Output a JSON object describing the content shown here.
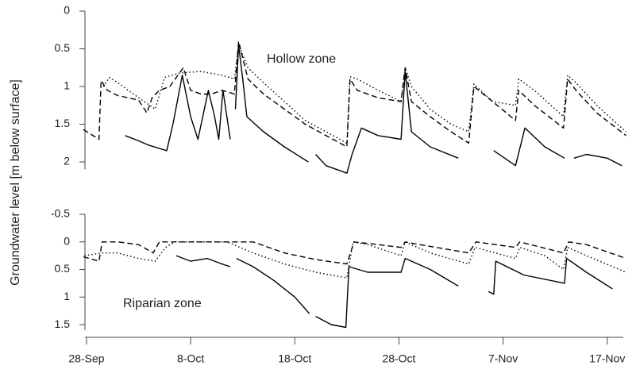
{
  "ylabel": "Groundwater level [m below surface]",
  "chart_data": [
    {
      "type": "line",
      "annotation": "Hollow zone",
      "xlim": [
        -0.5,
        52
      ],
      "ylim": [
        2.1,
        0
      ],
      "yticks": [
        0,
        0.5,
        1,
        1.5,
        2
      ],
      "series": [
        {
          "color": "#000000",
          "dash": "dashed",
          "x": [
            -0.3,
            1.2,
            1.4,
            2,
            3,
            4,
            5,
            5.8,
            6.3,
            7,
            8,
            9.3,
            10,
            11,
            12,
            13,
            14.2,
            14.6,
            15.5,
            17,
            19,
            21,
            23,
            25,
            25.3,
            26,
            28,
            30.2,
            30.6,
            31.2,
            33,
            35,
            36.7,
            37.2,
            39,
            41.2,
            41.5,
            43,
            45.8,
            46.2,
            47,
            49,
            51.8
          ],
          "values": [
            1.57,
            1.7,
            0.92,
            1.05,
            1.12,
            1.15,
            1.18,
            1.35,
            1.15,
            1.05,
            1.0,
            0.75,
            1.05,
            1.1,
            1.1,
            1.05,
            1.1,
            0.4,
            0.9,
            1.1,
            1.3,
            1.5,
            1.65,
            1.8,
            0.9,
            1.05,
            1.15,
            1.2,
            0.75,
            1.2,
            1.4,
            1.6,
            1.75,
            1.0,
            1.2,
            1.45,
            1.05,
            1.25,
            1.55,
            0.9,
            1.05,
            1.35,
            1.65
          ]
        },
        {
          "color": "#000000",
          "dash": "dotted",
          "x": [
            1.6,
            2.2,
            3,
            4.5,
            6.6,
            7.5,
            9,
            11,
            13,
            14.2,
            14.6,
            15.5,
            17,
            19,
            21,
            23,
            25,
            25.3,
            26,
            28,
            30.2,
            30.6,
            31.2,
            33,
            35,
            36.7,
            37.2,
            39,
            41.2,
            41.5,
            43,
            45.8,
            46.2,
            47,
            49,
            51.8
          ],
          "values": [
            1.0,
            0.88,
            0.95,
            1.1,
            1.3,
            0.88,
            0.82,
            0.8,
            0.85,
            0.9,
            0.45,
            0.75,
            0.95,
            1.2,
            1.45,
            1.6,
            1.75,
            0.87,
            0.9,
            1.05,
            1.2,
            0.75,
            1.0,
            1.3,
            1.5,
            1.6,
            0.97,
            1.2,
            1.25,
            0.9,
            1.05,
            1.4,
            0.85,
            0.95,
            1.25,
            1.6
          ]
        },
        {
          "color": "#000000",
          "dash": "solid",
          "x": [
            3.7,
            5,
            6,
            7.7,
            8.3,
            9.2,
            10,
            10.7,
            11.7,
            12.3,
            12.7,
            13.1,
            13.8,
            14.1,
            14.3,
            14.6,
            15,
            15.4,
            17,
            19,
            21.3,
            21.6,
            22,
            23,
            25,
            25.5,
            26.4,
            28,
            30.2,
            30.6,
            31.2,
            33,
            35.7,
            36,
            39.1,
            41.2,
            42.1,
            44,
            45.9,
            46.4,
            46.8,
            48,
            50,
            51.4
          ],
          "values": [
            1.65,
            1.72,
            1.78,
            1.85,
            1.5,
            0.85,
            1.4,
            1.7,
            1.05,
            1.4,
            1.7,
            1.05,
            1.7,
            null,
            1.3,
            0.45,
            0.9,
            1.4,
            1.6,
            1.8,
            2.0,
            null,
            1.9,
            2.05,
            2.15,
            1.9,
            1.55,
            1.65,
            1.7,
            0.8,
            1.6,
            1.8,
            1.95,
            null,
            1.85,
            2.05,
            1.55,
            1.8,
            1.95,
            null,
            1.95,
            1.9,
            1.95,
            2.05
          ]
        }
      ]
    },
    {
      "type": "line",
      "annotation": "Riparian zone",
      "xlim": [
        -0.5,
        52
      ],
      "ylim": [
        1.6,
        -0.5
      ],
      "yticks": [
        -0.5,
        0,
        0.5,
        1,
        1.5
      ],
      "xticks": [
        {
          "value": 0,
          "label": "28-Sep"
        },
        {
          "value": 10,
          "label": "8-Oct"
        },
        {
          "value": 20,
          "label": "18-Oct"
        },
        {
          "value": 30,
          "label": "28-Oct"
        },
        {
          "value": 40,
          "label": "7-Nov"
        },
        {
          "value": 50,
          "label": "17-Nov"
        }
      ],
      "series": [
        {
          "color": "#000000",
          "dash": "dashed",
          "x": [
            -0.3,
            1.2,
            1.5,
            3,
            5,
            6.4,
            7,
            10,
            13,
            16,
            19,
            22,
            25,
            25.7,
            28,
            30.2,
            30.6,
            32,
            36.7,
            37.4,
            41.2,
            41.6,
            45.8,
            46.3,
            48,
            51.8
          ],
          "values": [
            0.27,
            0.35,
            0.0,
            0.0,
            0.05,
            0.2,
            0.0,
            0.0,
            0.0,
            0.0,
            0.2,
            0.32,
            0.4,
            0.0,
            0.05,
            0.1,
            0.0,
            0.05,
            0.2,
            0.0,
            0.1,
            0.0,
            0.2,
            0.0,
            0.05,
            0.3
          ]
        },
        {
          "color": "#000000",
          "dash": "dotted",
          "x": [
            -0.2,
            1.5,
            3,
            5,
            6.6,
            7.6,
            8.5,
            13.5,
            16,
            19,
            22,
            25,
            25.6,
            27,
            30.2,
            30.6,
            33,
            36.7,
            37.3,
            41.2,
            41.6,
            44,
            45.8,
            46.2,
            48,
            51.8
          ],
          "values": [
            0.25,
            0.2,
            0.2,
            0.3,
            0.35,
            0.1,
            0.0,
            0.0,
            0.2,
            0.4,
            0.55,
            0.65,
            0.0,
            0.05,
            0.25,
            0.0,
            0.2,
            0.4,
            0.1,
            0.3,
            0.1,
            0.25,
            0.5,
            0.1,
            0.25,
            0.55
          ]
        },
        {
          "color": "#000000",
          "dash": "solid",
          "x": [
            8.6,
            10,
            11.6,
            13,
            13.8,
            14.1,
            14.4,
            16,
            18,
            20,
            21.4,
            21.8,
            22,
            23.5,
            24.9,
            25.2,
            27,
            30.2,
            30.6,
            33,
            35.7,
            36,
            38.6,
            39.1,
            39.3,
            42,
            45.9,
            46.1,
            48,
            50.5
          ],
          "values": [
            0.25,
            0.35,
            0.3,
            0.4,
            0.45,
            null,
            0.3,
            0.45,
            0.7,
            1.0,
            1.3,
            null,
            1.35,
            1.5,
            1.55,
            0.45,
            0.55,
            0.55,
            0.3,
            0.5,
            0.8,
            null,
            0.9,
            0.95,
            0.35,
            0.6,
            0.75,
            0.3,
            0.55,
            0.85
          ]
        }
      ]
    }
  ]
}
